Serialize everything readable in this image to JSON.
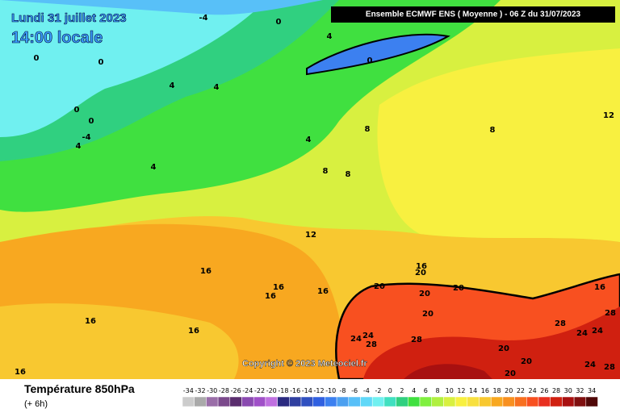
{
  "map": {
    "title_date": "Lundi 31 juillet 2023",
    "title_time": "14:00 locale",
    "header": "Ensemble ECMWF ENS  ( Moyenne )  -  06 Z du 31/07/2023",
    "copyright": "Copyright © 2023 Meteociel.fr",
    "legend": {
      "title": "Température 850hPa",
      "subtitle": "(+ 6h)",
      "ticks": [
        -34,
        -32,
        -30,
        -28,
        -26,
        -24,
        -22,
        -20,
        -18,
        -16,
        -14,
        -12,
        -10,
        -8,
        -6,
        -4,
        -2,
        0,
        2,
        4,
        6,
        8,
        10,
        12,
        14,
        16,
        18,
        20,
        22,
        24,
        26,
        28,
        30,
        32,
        34
      ],
      "colors": [
        "#cccccc",
        "#aaaaaa",
        "#9a6ea8",
        "#7b4a8c",
        "#5a2e6e",
        "#8a4ab0",
        "#a050c8",
        "#c070e0",
        "#2a2a80",
        "#3040a0",
        "#3050c0",
        "#3060e0",
        "#3c80f0",
        "#4ca0f0",
        "#58c0f8",
        "#60d8f8",
        "#70f0f0",
        "#40e0c0",
        "#30d080",
        "#40e040",
        "#80f040",
        "#b0f040",
        "#d8f040",
        "#f8f040",
        "#f8e040",
        "#f8c830",
        "#f8a820",
        "#f89020",
        "#f87020",
        "#f85020",
        "#e83020",
        "#d02010",
        "#a81010",
        "#801010",
        "#500808"
      ]
    },
    "contour_labels": [
      "-4",
      "0",
      "4",
      "0",
      "0",
      "0",
      "4",
      "4",
      "0",
      "0",
      "-4",
      "4",
      "8",
      "4",
      "8",
      "12",
      "4",
      "8",
      "8",
      "12",
      "16",
      "16",
      "16",
      "16",
      "20",
      "16",
      "20",
      "20",
      "20",
      "20",
      "16",
      "28",
      "16",
      "16",
      "28",
      "24",
      "24",
      "24",
      "24",
      "28",
      "28",
      "20",
      "20",
      "24",
      "28",
      "20",
      "16"
    ]
  }
}
